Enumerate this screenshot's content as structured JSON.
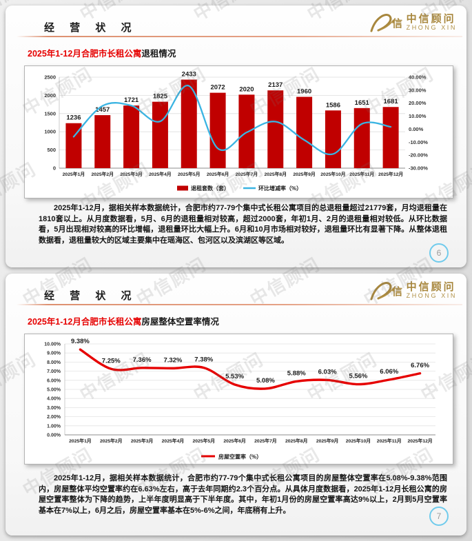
{
  "watermark": {
    "text": "中信顾问"
  },
  "logo": {
    "name": "中信顾问",
    "subtitle": "ZHONG XIN",
    "mark_char": "信",
    "color": "#a8873d"
  },
  "slides": [
    {
      "header": "经 营 状 况",
      "title_red": "2025年1-12月合肥市长租公寓",
      "title_black": "退租情况",
      "body": "2025年1-12月，据相关样本数据统计，合肥市约77-79个集中式长租公寓项目的总退租量超过21779套，月均退租量在1810套以上。从月度数据看，5月、6月的退租量相对较高，超过2000套，年初1月、2月的退租量相对较低。从环比数据看，5月出现相对较高的环比增幅，退租量环比大幅上升。6月和10月市场相对较好，退租量环比有显著下降。从整体退租数据看，退租量较大的区域主要集中在瑶海区、包河区以及滨湖区等区域。",
      "page": "6"
    },
    {
      "header": "经 营 状 况",
      "title_red": "2025年1-12月合肥市长租公寓",
      "title_black": "房屋整体空置率情况",
      "body": "2025年1-12月，据相关样本数据统计，合肥市约77-79个集中式长租公寓项目的房屋整体空置率在5.08%-9.38%范围内，房屋整体平均空置率约在6.63%左右，高于去年同期约2.3个百分点。从具体月度数据看，2025年1-12月长租公寓的房屋空置率整体为下降的趋势，上半年度明显高于下半年度。其中，年初1月份的房屋空置率高达9%以上，2月到5月空置率基本在7%以上，6月之后，房屋空置率基本在5%-6%之间，年底稍有上升。",
      "page": "7"
    }
  ],
  "chart_data": [
    {
      "type": "bar",
      "title": "2025年1-12月合肥市长租公寓退租情况",
      "categories": [
        "2025年1月",
        "2025年2月",
        "2025年3月",
        "2025年4月",
        "2025年5月",
        "2025年6月",
        "2025年7月",
        "2025年8月",
        "2025年9月",
        "2025年10月",
        "2025年11月",
        "2025年12月"
      ],
      "series": [
        {
          "name": "退租套数（套）",
          "type": "bar",
          "axis": "left",
          "color": "#c00000",
          "values": [
            1236,
            1457,
            1721,
            1825,
            2433,
            2072,
            2020,
            2137,
            1960,
            1586,
            1651,
            1681
          ]
        },
        {
          "name": "环比增减率（%）",
          "type": "line",
          "axis": "right",
          "color": "#3ab4e2",
          "values": [
            -5.8,
            17.9,
            18.1,
            6.0,
            33.3,
            -14.8,
            -2.5,
            5.8,
            -8.3,
            -19.1,
            4.1,
            1.8
          ]
        }
      ],
      "left_axis": {
        "min": 0,
        "max": 2500,
        "step": 500
      },
      "right_axis": {
        "min": -30,
        "max": 40,
        "step": 10,
        "suffix": "%"
      },
      "grid": true,
      "legend_position": "bottom"
    },
    {
      "type": "line",
      "title": "2025年1-12月合肥市长租公寓房屋整体空置率情况",
      "categories": [
        "2025年1月",
        "2025年2月",
        "2025年3月",
        "2025年4月",
        "2025年5月",
        "2025年6月",
        "2025年7月",
        "2025年8月",
        "2025年9月",
        "2025年10月",
        "2025年11月",
        "2025年12月"
      ],
      "series": [
        {
          "name": "房屋空置率（%）",
          "type": "line",
          "color": "#e60000",
          "label_suffix": "%",
          "values": [
            9.38,
            7.25,
            7.36,
            7.32,
            7.38,
            5.53,
            5.08,
            5.88,
            6.03,
            5.56,
            6.06,
            6.76
          ]
        }
      ],
      "y_axis": {
        "min": 0,
        "max": 10,
        "step": 1,
        "suffix": "%"
      },
      "grid": true,
      "legend_position": "bottom"
    }
  ]
}
